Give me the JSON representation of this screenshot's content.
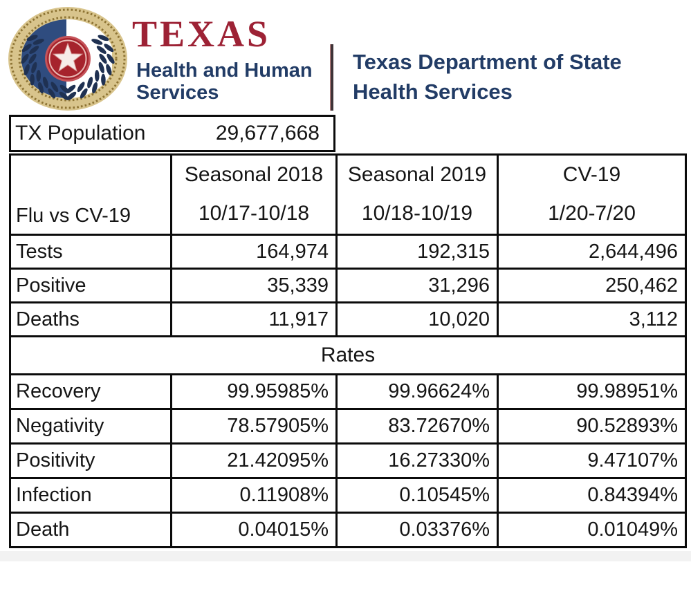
{
  "brand": {
    "seal_icon": "texas-state-seal",
    "title": "TEXAS",
    "subtitle_line1": "Health and Human",
    "subtitle_line2": "Services"
  },
  "department": {
    "line1": "Texas Department of State",
    "line2": "Health Services"
  },
  "population": {
    "label": "TX Population",
    "value": "29,677,668"
  },
  "table": {
    "corner_label": "Flu vs CV-19",
    "columns": [
      {
        "label": "Seasonal 2018",
        "dates": "10/17-10/18"
      },
      {
        "label": "Seasonal 2019",
        "dates": "10/18-10/19"
      },
      {
        "label": "CV-19",
        "dates": "1/20-7/20"
      }
    ],
    "counts": [
      {
        "label": "Tests",
        "values": [
          "164,974",
          "192,315",
          "2,644,496"
        ]
      },
      {
        "label": "Positive",
        "values": [
          "35,339",
          "31,296",
          "250,462"
        ]
      },
      {
        "label": "Deaths",
        "values": [
          "11,917",
          "10,020",
          "3,112"
        ]
      }
    ],
    "rates_header": "Rates",
    "rates": [
      {
        "label": "Recovery",
        "values": [
          "99.95985%",
          "99.96624%",
          "99.98951%"
        ]
      },
      {
        "label": "Negativity",
        "values": [
          "78.57905%",
          "83.72670%",
          "90.52893%"
        ]
      },
      {
        "label": "Positivity",
        "values": [
          "21.42095%",
          "16.27330%",
          "9.47107%"
        ]
      },
      {
        "label": "Infection",
        "values": [
          "0.11908%",
          "0.10545%",
          "0.84394%"
        ]
      },
      {
        "label": "Death",
        "values": [
          "0.04015%",
          "0.03376%",
          "0.01049%"
        ]
      }
    ]
  },
  "colors": {
    "brand_maroon": "#9D2235",
    "brand_navy": "#223C66",
    "table_text": "#151515",
    "table_border": "#0B0B0B",
    "seal_gold": "#D8C48C",
    "seal_gold_dark": "#8E7434",
    "seal_blue": "#2F4C7F",
    "seal_red": "#A6232C",
    "seal_red_light": "#C5545A",
    "wreath_navy": "#1F3152",
    "divider": "#3E3337"
  }
}
